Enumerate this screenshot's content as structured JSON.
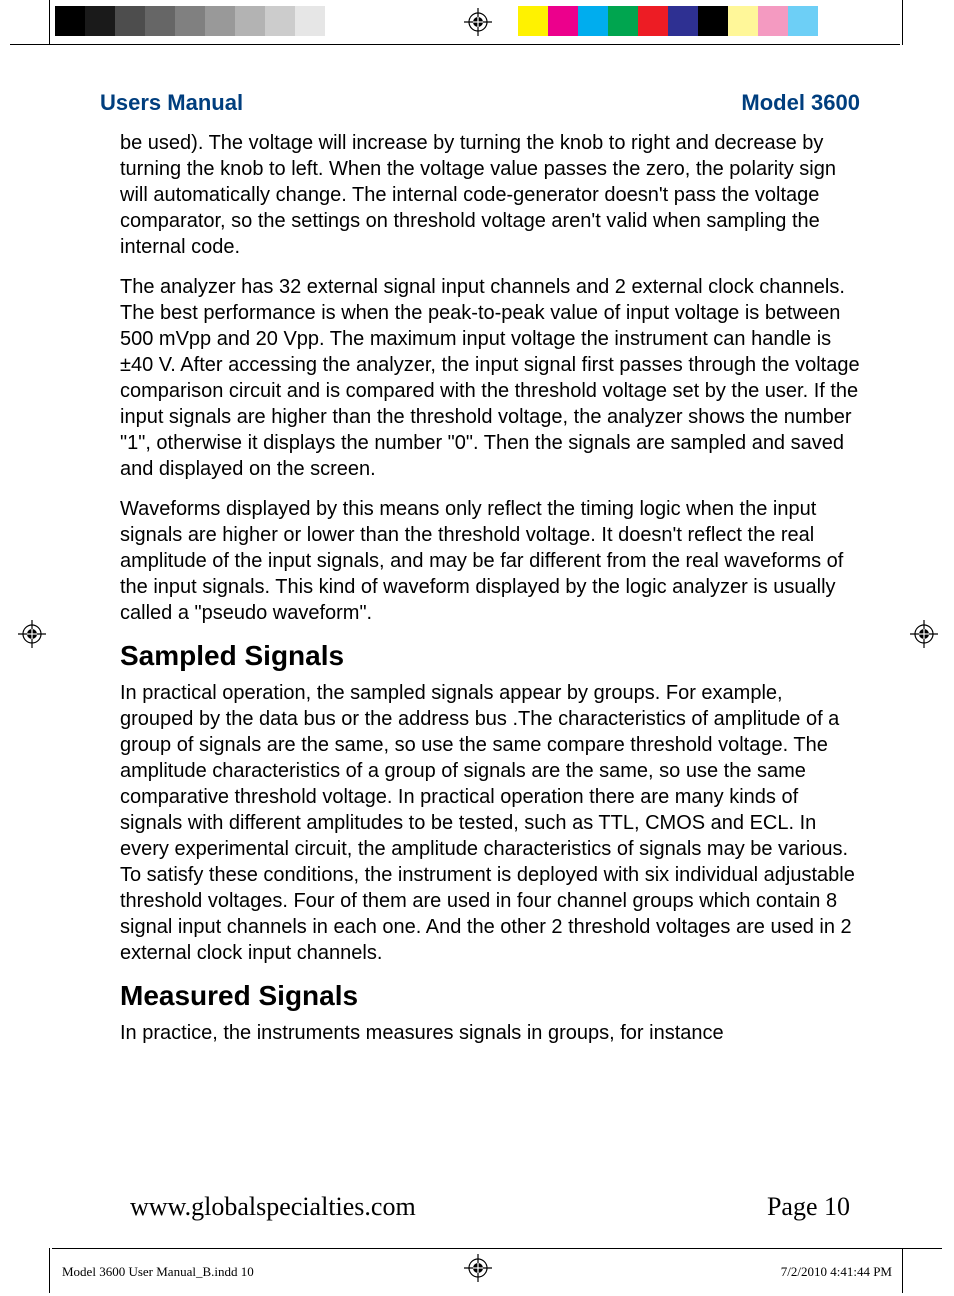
{
  "printbar": {
    "gray_swatches": [
      "#000000",
      "#1a1a1a",
      "#4d4d4d",
      "#666666",
      "#808080",
      "#999999",
      "#b3b3b3",
      "#cccccc",
      "#e6e6e6",
      "#ffffff"
    ],
    "color_swatches": [
      "#fff200",
      "#ec008c",
      "#00adee",
      "#00a54f",
      "#ed1c24",
      "#2e3092",
      "#000000",
      "#fff799",
      "#f49ac1",
      "#6dcff6"
    ],
    "slug_file": "Model 3600 User Manual_B.indd   10",
    "slug_timestamp": "7/2/2010   4:41:44 PM"
  },
  "header": {
    "left": "Users Manual",
    "right": "Model 3600",
    "color": "#003e7e"
  },
  "body": {
    "p1": "be used). The voltage will increase by turning the knob to right and decrease by turning the knob to left. When the voltage value passes the zero, the polarity sign will automatically change. The internal code-generator doesn't pass the voltage comparator, so the settings on threshold voltage aren't valid when sampling the internal code.",
    "p2": "The analyzer has 32 external signal input channels and 2 external clock channels. The best performance is when the peak-to-peak value of input voltage is between 500 mVpp and 20 Vpp. The maximum input voltage the instrument can handle is ±40 V. After accessing the analyzer, the input signal first passes through the voltage comparison circuit and is compared with the threshold voltage set by the user. If the input signals are higher than the threshold voltage, the analyzer shows the number \"1\", otherwise it displays the number \"0\". Then the signals are sampled and saved and displayed on the screen.",
    "p3": "Waveforms displayed by this means only reflect the timing logic when the input signals are higher or lower than the threshold voltage. It doesn't reflect the real amplitude of the input signals, and may be far different from the real waveforms of the input signals.  This kind of waveform displayed by the logic analyzer is usually called a \"pseudo waveform\".",
    "h1": "Sampled Signals",
    "p4": "In practical operation, the sampled signals appear by groups. For example, grouped by the data bus or the address bus .The characteristics of amplitude of a group of signals are the same, so use the same compare threshold voltage. The amplitude characteristics of a group of signals are the same, so use the same comparative threshold voltage. In practical operation there are many kinds of signals with different amplitudes to be tested, such as TTL, CMOS and ECL. In every experimental circuit, the amplitude characteristics of signals may be various. To satisfy these conditions, the instrument is deployed with six individual adjustable threshold voltages. Four of them are used in four channel groups which contain 8 signal input channels in each one. And the other 2 threshold voltages are used in 2 external clock input channels.",
    "h2": "Measured Signals",
    "p5": "In practice, the instruments measures signals in groups, for instance"
  },
  "footer": {
    "url": "www.globalspecialties.com",
    "page": "Page 10"
  }
}
